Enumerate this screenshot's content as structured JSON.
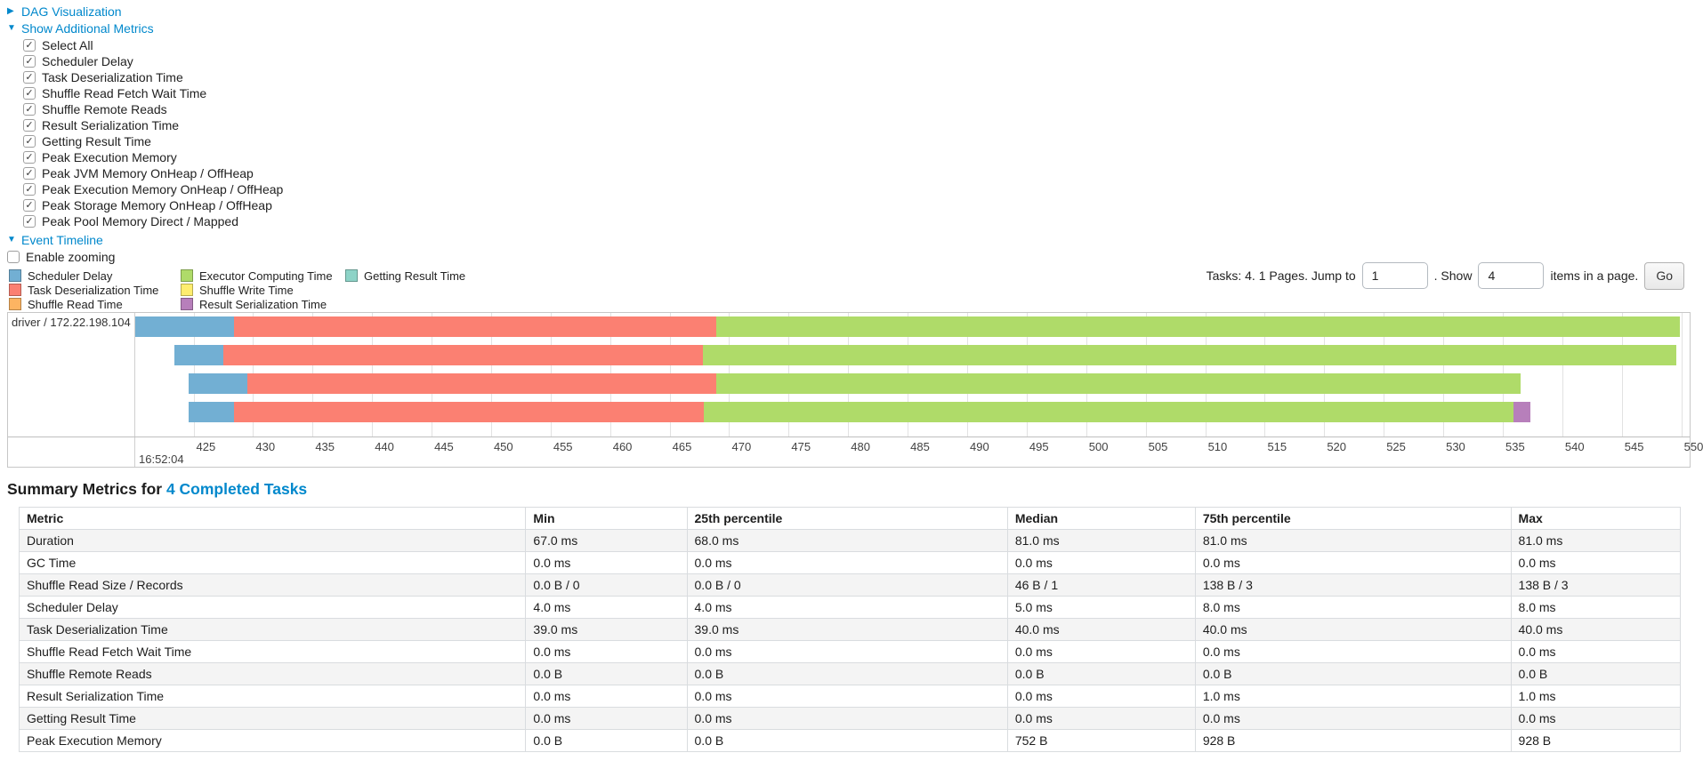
{
  "controls": {
    "dag_label": "DAG Visualization",
    "metrics_label": "Show Additional Metrics",
    "metric_checkboxes": [
      "Select All",
      "Scheduler Delay",
      "Task Deserialization Time",
      "Shuffle Read Fetch Wait Time",
      "Shuffle Remote Reads",
      "Result Serialization Time",
      "Getting Result Time",
      "Peak Execution Memory",
      "Peak JVM Memory OnHeap / OffHeap",
      "Peak Execution Memory OnHeap / OffHeap",
      "Peak Storage Memory OnHeap / OffHeap",
      "Peak Pool Memory Direct / Mapped"
    ],
    "event_timeline_label": "Event Timeline",
    "enable_zooming_label": "Enable zooming"
  },
  "legend_columns": [
    [
      {
        "label": "Scheduler Delay",
        "color": "#72AFD3"
      },
      {
        "label": "Task Deserialization Time",
        "color": "#FB8072"
      },
      {
        "label": "Shuffle Read Time",
        "color": "#FDB462"
      }
    ],
    [
      {
        "label": "Executor Computing Time",
        "color": "#AFDB69"
      },
      {
        "label": "Shuffle Write Time",
        "color": "#FFED6F"
      },
      {
        "label": "Result Serialization Time",
        "color": "#B77FBB"
      }
    ],
    [
      {
        "label": "Getting Result Time",
        "color": "#8DD3C7"
      }
    ]
  ],
  "pagination": {
    "tasks_text": "Tasks: 4. 1 Pages. Jump to",
    "jump_value": "1",
    "show_text": ". Show",
    "show_value": "4",
    "items_text": "items in a page.",
    "go_label": "Go"
  },
  "chart_data": {
    "type": "timeline",
    "group_label": "driver / 172.22.198.104",
    "axis": {
      "start": 420.1,
      "end": 550.7,
      "unit": "ms within second",
      "ticks": [
        425,
        430,
        435,
        440,
        445,
        450,
        455,
        460,
        465,
        470,
        475,
        480,
        485,
        490,
        495,
        500,
        505,
        510,
        515,
        520,
        525,
        530,
        535,
        540,
        545,
        550
      ],
      "major_label": "16:52:04"
    },
    "colors": {
      "scheduler-delay": "#72AFD3",
      "task-deserialization": "#FB8072",
      "shuffle-read": "#FDB462",
      "executor-computing": "#AFDB69",
      "shuffle-write": "#FFED6F",
      "result-serialization": "#B77FBB",
      "getting-result": "#8DD3C7"
    },
    "bars": [
      {
        "segments": [
          {
            "type": "scheduler-delay",
            "start": 420.1,
            "end": 428.4
          },
          {
            "type": "task-deserialization",
            "start": 428.4,
            "end": 468.9
          },
          {
            "type": "executor-computing",
            "start": 468.9,
            "end": 549.9
          }
        ]
      },
      {
        "segments": [
          {
            "type": "scheduler-delay",
            "start": 423.4,
            "end": 427.5
          },
          {
            "type": "task-deserialization",
            "start": 427.5,
            "end": 467.8
          },
          {
            "type": "executor-computing",
            "start": 467.8,
            "end": 549.6
          }
        ]
      },
      {
        "segments": [
          {
            "type": "scheduler-delay",
            "start": 424.6,
            "end": 429.5
          },
          {
            "type": "task-deserialization",
            "start": 429.5,
            "end": 468.9
          },
          {
            "type": "executor-computing",
            "start": 468.9,
            "end": 536.5
          }
        ]
      },
      {
        "segments": [
          {
            "type": "scheduler-delay",
            "start": 424.6,
            "end": 428.4
          },
          {
            "type": "task-deserialization",
            "start": 428.4,
            "end": 467.9
          },
          {
            "type": "executor-computing",
            "start": 467.9,
            "end": 535.9
          },
          {
            "type": "result-serialization",
            "start": 535.9,
            "end": 537.3
          }
        ]
      }
    ]
  },
  "summary": {
    "heading_prefix": "Summary Metrics for ",
    "heading_link": "4 Completed Tasks",
    "table": {
      "columns": [
        "Metric",
        "Min",
        "25th percentile",
        "Median",
        "75th percentile",
        "Max"
      ],
      "rows": [
        [
          "Duration",
          "67.0 ms",
          "68.0 ms",
          "81.0 ms",
          "81.0 ms",
          "81.0 ms"
        ],
        [
          "GC Time",
          "0.0 ms",
          "0.0 ms",
          "0.0 ms",
          "0.0 ms",
          "0.0 ms"
        ],
        [
          "Shuffle Read Size / Records",
          "0.0 B / 0",
          "0.0 B / 0",
          "46 B / 1",
          "138 B / 3",
          "138 B / 3"
        ],
        [
          "Scheduler Delay",
          "4.0 ms",
          "4.0 ms",
          "5.0 ms",
          "8.0 ms",
          "8.0 ms"
        ],
        [
          "Task Deserialization Time",
          "39.0 ms",
          "39.0 ms",
          "40.0 ms",
          "40.0 ms",
          "40.0 ms"
        ],
        [
          "Shuffle Read Fetch Wait Time",
          "0.0 ms",
          "0.0 ms",
          "0.0 ms",
          "0.0 ms",
          "0.0 ms"
        ],
        [
          "Shuffle Remote Reads",
          "0.0 B",
          "0.0 B",
          "0.0 B",
          "0.0 B",
          "0.0 B"
        ],
        [
          "Result Serialization Time",
          "0.0 ms",
          "0.0 ms",
          "0.0 ms",
          "1.0 ms",
          "1.0 ms"
        ],
        [
          "Getting Result Time",
          "0.0 ms",
          "0.0 ms",
          "0.0 ms",
          "0.0 ms",
          "0.0 ms"
        ],
        [
          "Peak Execution Memory",
          "0.0 B",
          "0.0 B",
          "752 B",
          "928 B",
          "928 B"
        ]
      ]
    }
  }
}
